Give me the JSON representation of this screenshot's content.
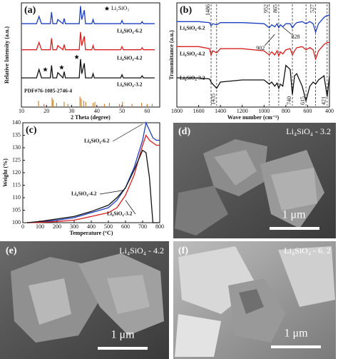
{
  "chart_data": [
    {
      "type": "line",
      "label": "(a)",
      "xlabel": "2 Theta (degree)",
      "ylabel": "Relative Intensity (a.u.)",
      "xlim": [
        10,
        65
      ],
      "ylim": [
        0,
        100
      ],
      "xticks": [
        10,
        20,
        30,
        40,
        50,
        60
      ],
      "legend": "top-right",
      "series": [
        {
          "name": "Li₄SiO₄-6.2",
          "color": "#1f3fbf",
          "x": [
            10,
            16,
            17,
            18,
            21.5,
            22,
            22.5,
            24,
            24.5,
            26.5,
            27,
            27.5,
            33,
            33.5,
            34,
            35,
            35.5,
            38,
            38.5,
            39,
            49.5,
            50,
            50.5,
            57.5,
            58,
            58.5,
            63
          ],
          "values": [
            80,
            80,
            87,
            80,
            80,
            91,
            80,
            80,
            84,
            80,
            85,
            80,
            80,
            97,
            84,
            93,
            80,
            80,
            84,
            80,
            80,
            83,
            80,
            80,
            82,
            80,
            80
          ]
        },
        {
          "name": "Li₄SiO₄-4.2",
          "color": "#d62020",
          "x": [
            10,
            16,
            17,
            18,
            21.5,
            22,
            22.5,
            24,
            24.5,
            26.5,
            27,
            27.5,
            33,
            33.5,
            34,
            35,
            35.5,
            38,
            38.5,
            39,
            49.5,
            50,
            50.5,
            57.5,
            58,
            58.5,
            63
          ],
          "values": [
            55,
            55,
            62,
            55,
            55,
            66,
            55,
            55,
            59,
            55,
            60,
            55,
            55,
            72,
            59,
            68,
            55,
            55,
            59,
            55,
            55,
            58,
            55,
            55,
            57,
            55,
            55
          ]
        },
        {
          "name": "Li₄SiO₄-3.2",
          "color": "#111111",
          "x": [
            10,
            16,
            17,
            18,
            21.5,
            22,
            22.5,
            24,
            24.5,
            26.5,
            27,
            27.5,
            33,
            33.5,
            34,
            35,
            35.5,
            38,
            38.5,
            39,
            49.5,
            50,
            50.5,
            57.5,
            58,
            58.5,
            63
          ],
          "values": [
            28,
            28,
            36,
            28,
            28,
            40,
            28,
            28,
            33,
            28,
            34,
            28,
            28,
            46,
            32,
            42,
            28,
            28,
            32,
            28,
            28,
            31,
            28,
            28,
            30,
            28,
            28
          ]
        },
        {
          "name": "PDF#76-1085-2746-4",
          "color": "#c8873a",
          "style": "stick",
          "x": [
            16.8,
            19,
            22.2,
            22.6,
            24,
            27,
            28.5,
            33.3,
            33.8,
            34.8,
            35.6,
            38.5,
            39.2,
            43,
            45,
            49,
            50.2,
            54,
            57.8,
            60,
            62
          ],
          "values": [
            6,
            3,
            9,
            7,
            4,
            5,
            3,
            10,
            8,
            6,
            5,
            4,
            5,
            3,
            4,
            3,
            5,
            3,
            4,
            3,
            3
          ]
        },
        {
          "name": "Li₂SiO₃",
          "color": "#111111",
          "style": "star",
          "x": [
            19.5,
            26,
            32
          ],
          "values": [
            36,
            38,
            48
          ]
        }
      ]
    },
    {
      "type": "line",
      "label": "(b)",
      "xlabel": "Wave number (cm⁻¹)",
      "ylabel": "Transmittance (a.u.)",
      "xlim": [
        1800,
        400
      ],
      "ylim": [
        0,
        100
      ],
      "xticks": [
        1800,
        1600,
        1400,
        1200,
        1000,
        800,
        600,
        400
      ],
      "peaks_top": [
        1486,
        952,
        865,
        527
      ],
      "peaks_bottom": [
        1435,
        740,
        615,
        421
      ],
      "peaks_arrow": [
        902,
        828
      ],
      "series": [
        {
          "name": "Li₄SiO₄-6.2",
          "color": "#1f3fbf",
          "x": [
            1800,
            1600,
            1500,
            1486,
            1470,
            1435,
            1400,
            1200,
            1000,
            952,
            930,
            902,
            880,
            865,
            850,
            828,
            800,
            760,
            740,
            720,
            700,
            650,
            615,
            580,
            550,
            527,
            500,
            450,
            421,
            400
          ],
          "values": [
            82,
            82,
            81,
            78,
            80,
            79,
            81,
            81,
            80,
            76,
            79,
            77,
            80,
            76,
            79,
            77,
            80,
            80,
            76,
            79,
            81,
            82,
            80,
            82,
            80,
            72,
            80,
            86,
            88,
            88
          ]
        },
        {
          "name": "Li₄SiO₄-4.2",
          "color": "#d62020",
          "x": [
            1800,
            1600,
            1500,
            1486,
            1470,
            1435,
            1400,
            1200,
            1000,
            952,
            930,
            902,
            880,
            865,
            850,
            828,
            800,
            760,
            740,
            720,
            700,
            650,
            615,
            580,
            550,
            527,
            500,
            450,
            421,
            400
          ],
          "values": [
            58,
            58,
            56,
            50,
            54,
            52,
            56,
            56,
            54,
            50,
            53,
            50,
            54,
            49,
            53,
            51,
            55,
            56,
            50,
            54,
            57,
            58,
            55,
            57,
            55,
            46,
            54,
            60,
            62,
            62
          ]
        },
        {
          "name": "Li₄SiO₄-3.2",
          "color": "#111111",
          "x": [
            1800,
            1600,
            1500,
            1486,
            1470,
            1435,
            1400,
            1200,
            1000,
            952,
            930,
            902,
            880,
            865,
            850,
            828,
            800,
            760,
            740,
            720,
            700,
            650,
            615,
            580,
            550,
            527,
            500,
            450,
            421,
            400
          ],
          "values": [
            28,
            28,
            27,
            24,
            22,
            18,
            24,
            26,
            26,
            22,
            24,
            20,
            23,
            18,
            22,
            20,
            40,
            36,
            12,
            30,
            32,
            20,
            6,
            20,
            24,
            22,
            26,
            30,
            10,
            30
          ]
        }
      ]
    },
    {
      "type": "line",
      "label": "(c)",
      "xlabel": "Temperature (°C)",
      "ylabel": "Weight (%)",
      "xlim": [
        0,
        800
      ],
      "ylim": [
        100,
        140
      ],
      "xticks": [
        0,
        100,
        200,
        300,
        400,
        500,
        600,
        700,
        800
      ],
      "yticks": [
        100,
        105,
        110,
        115,
        120,
        125,
        130,
        135,
        140
      ],
      "series": [
        {
          "name": "Li₄SiO₄-6.2",
          "color": "#1f3fbf",
          "x": [
            25,
            100,
            200,
            300,
            400,
            500,
            550,
            600,
            650,
            700,
            720,
            740,
            760,
            780,
            800
          ],
          "values": [
            100,
            100.2,
            101,
            102,
            104,
            106,
            109,
            114,
            122,
            133,
            140,
            137,
            134,
            133,
            133
          ]
        },
        {
          "name": "Li₄SiO₄-4.2",
          "color": "#d62020",
          "x": [
            25,
            100,
            200,
            300,
            400,
            500,
            550,
            600,
            650,
            700,
            720,
            740,
            760,
            780,
            800
          ],
          "values": [
            100,
            100.1,
            100.5,
            101,
            102.5,
            104,
            106,
            111,
            119,
            131,
            135,
            133,
            132,
            131,
            131
          ]
        },
        {
          "name": "Li₄SiO₄-3.2",
          "color": "#111111",
          "x": [
            25,
            100,
            200,
            300,
            400,
            500,
            550,
            600,
            650,
            700,
            720,
            740,
            760,
            780,
            800
          ],
          "values": [
            100,
            100.5,
            101.5,
            102.5,
            104.5,
            107,
            110,
            114,
            121,
            129,
            128,
            118,
            100,
            100,
            100
          ]
        }
      ]
    }
  ],
  "images": [
    {
      "label": "(d)",
      "caption": "Li₄SiO₄ - 3.2",
      "scale": "1 μm"
    },
    {
      "label": "(e)",
      "caption": "Li₄SiO₄ - 4.2",
      "scale": "1 μm"
    },
    {
      "label": "(f)",
      "caption": "Li₄SiO₄ - 6. 2",
      "scale": "1 μm"
    }
  ]
}
